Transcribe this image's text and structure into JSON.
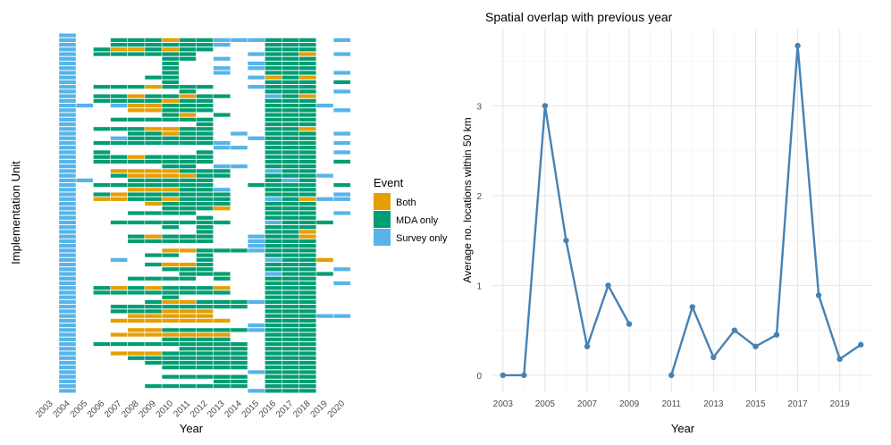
{
  "chart_data": [
    {
      "type": "heatmap",
      "title": "",
      "xlabel": "Year",
      "ylabel": "Implementation Unit",
      "x_categories": [
        "2003",
        "2004",
        "2005",
        "2006",
        "2007",
        "2008",
        "2009",
        "2010",
        "2011",
        "2012",
        "2013",
        "2014",
        "2015",
        "2016",
        "2017",
        "2018",
        "2019",
        "2020"
      ],
      "legend": {
        "title": "Event",
        "entries": [
          {
            "key": "B",
            "label": "Both",
            "color": "#E69F00"
          },
          {
            "key": "M",
            "label": "MDA only",
            "color": "#009E73"
          },
          {
            "key": "S",
            "label": "Survey only",
            "color": "#56B4E9"
          }
        ],
        "placement": "right"
      },
      "cell_codes": {
        "B": "Both",
        "M": "MDA only",
        "S": "Survey only",
        ".": "none"
      },
      "cells": [
        ".S................",
        ".S..MMMBMMSSSMMM.S",
        ".S..MMMMMMS..MMM..",
        ".S.MBBMBMM...MMM..",
        ".S.MMMMMM...SMMB.S",
        ".S.....MM.S..MMM..",
        ".S.....M....SMMM..",
        ".S.....M..S.SMMM..",
        ".S.....M..S..MMM.S",
        ".S....MM....SBMB..",
        ".S.....M.....MMM.M",
        ".S.MMMBMMM..SMMM..",
        ".S......M....MMM.S",
        ".S.MMBMMBMM..SMB..",
        ".S.MMMMBMM...MMM..",
        ".SS.SBBMMM...MMMS.",
        ".S...BBMMM...MMM.S",
        ".S.....MB.M..MMM..",
        ".S..MMMMMM...MMM..",
        ".S.......M...MMM..",
        ".S.MMMBBMM...MMB..",
        ".S...MMBMM.S.MMM.S",
        ".S..SMMMMM..SMMM..",
        ".S.MMMMMMMS..MMM.S",
        ".S........SS.MMM..",
        ".S.M.....M...MMM.S",
        ".S.MMBMMMM...MMM..",
        ".S.MMMMMMM...MMM.M",
        ".S.....MM.SS.MMM..",
        ".S..BBBBMMM..SMM..",
        ".S..MBBBBMM..MMMS.",
        ".SS..MMMMM...MSM..",
        ".S.MMMMMMM..MMMM.M",
        ".S...BBBMMS..MMM..",
        ".S.MBMMMMMM..MMM.S",
        ".S.BBMMBMMM..SMBSS",
        ".S....BMMMM..MMM..",
        ".S.....MMMB..MMM..",
        ".S...MMMM....MMM.S",
        ".S.......M...MMM..",
        ".S..MMMMMMM..SMMM.",
        ".S.....M.M...MMM..",
        ".S.......M...MMB..",
        ".S...MBMMM..SMMB..",
        ".S...MMMMM..SMMM..",
        ".S..........SMMM..",
        ".S.....BBMMMSMMM..",
        ".S....MM.M...MMM..",
        ".S..S....M...SMMB.",
        ".S....MBBM...MMM..",
        ".S.....MMM...MMM.S",
        ".S......MMM..SMMM.",
        ".S...MMMM.M..MMM..",
        ".S...........MMM.S",
        ".S.MBMBMMMB..MMM..",
        ".S.MMMMMMMM..MMM..",
        ".S.....M.....MMM..",
        ".S....MBBMMMSMMM..",
        ".S..MMMMMMMM.MMM..",
        ".S..MMMBBB...MMM..",
        ".S...BBBBB...MMMSS",
        ".S..BBBBBBB..MMM..",
        ".S..........SMMM..",
        ".S...BBMMMMMSMMM..",
        ".S..BBBBBBB..MMM..",
        ".S.....MMMM..MMM..",
        ".S.MMMMMMMMM.MMM..",
        ".S......MMMM.MMM..",
        ".S..BBBMMMMM.MMM..",
        ".S...MMMMMMM.MMM..",
        ".S....MMMMMM.MMM..",
        ".S.....MMMMM.MMM..",
        ".S..........SMMM..",
        ".S.....MMMMM.MMM..",
        ".S........MM.MMM..",
        ".S....MMMMMM.MMM..",
        ".S..........SMMM.."
      ]
    },
    {
      "type": "line",
      "title": "Spatial overlap with previous year",
      "xlabel": "Year",
      "ylabel": "Average no. locations within 50 km",
      "xlim": [
        2002.5,
        2020.5
      ],
      "ylim": [
        -0.2,
        3.85
      ],
      "x_ticks": [
        "2003",
        "2005",
        "2007",
        "2009",
        "2011",
        "2013",
        "2015",
        "2017",
        "2019"
      ],
      "y_ticks": [
        "0",
        "1",
        "2",
        "3"
      ],
      "series": [
        {
          "color": "#4682B4",
          "segments": [
            [
              [
                2003,
                0.0
              ],
              [
                2004,
                0.0
              ],
              [
                2005,
                3.0
              ],
              [
                2006,
                1.5
              ],
              [
                2007,
                0.32
              ],
              [
                2008,
                1.0
              ],
              [
                2009,
                0.57
              ]
            ],
            [
              [
                2011,
                0.0
              ],
              [
                2012,
                0.76
              ],
              [
                2013,
                0.2
              ],
              [
                2014,
                0.5
              ],
              [
                2015,
                0.32
              ],
              [
                2016,
                0.45
              ],
              [
                2017,
                3.67
              ],
              [
                2018,
                0.89
              ],
              [
                2019,
                0.18
              ],
              [
                2020,
                0.34
              ]
            ]
          ]
        }
      ],
      "grid": true
    }
  ]
}
